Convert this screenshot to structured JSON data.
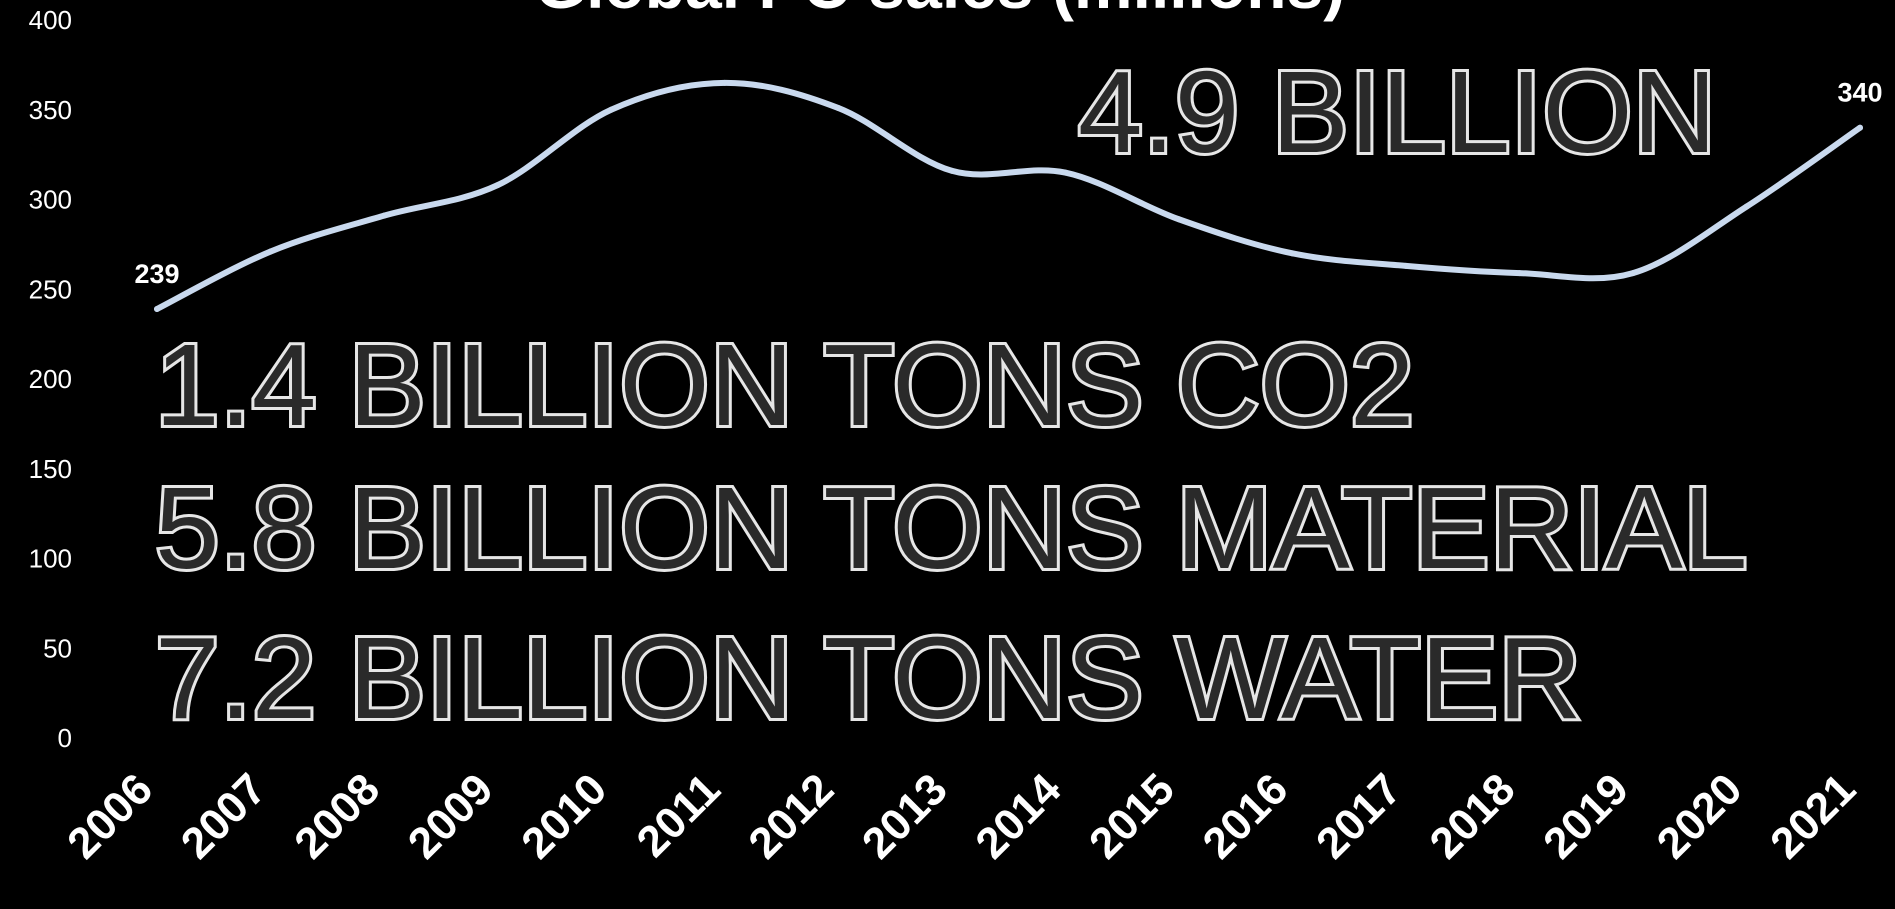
{
  "chart_data": {
    "type": "line",
    "title": "Global PC sales (millions)",
    "categories": [
      "2006",
      "2007",
      "2008",
      "2009",
      "2010",
      "2011",
      "2012",
      "2013",
      "2014",
      "2015",
      "2016",
      "2017",
      "2018",
      "2019",
      "2020",
      "2021"
    ],
    "series": [
      {
        "values": [
          239,
          271,
          291,
          308,
          350,
          365,
          351,
          316,
          315,
          289,
          270,
          263,
          259,
          259,
          296,
          340
        ]
      }
    ],
    "ylim": [
      0,
      400
    ],
    "yticks": [
      "0",
      "50",
      "100",
      "150",
      "200",
      "250",
      "300",
      "350",
      "400"
    ],
    "data_labels": [
      {
        "index": 0,
        "text": "239"
      },
      {
        "index": 15,
        "text": "340"
      }
    ],
    "grid": false,
    "line_color": "#c9d9ee"
  },
  "overlay": {
    "headline": "4.9 BILLION",
    "stats": [
      "1.4  BILLION TONS CO2",
      "5.8 BILLION TONS MATERIAL",
      "7.2 BILLION TONS WATER"
    ]
  }
}
